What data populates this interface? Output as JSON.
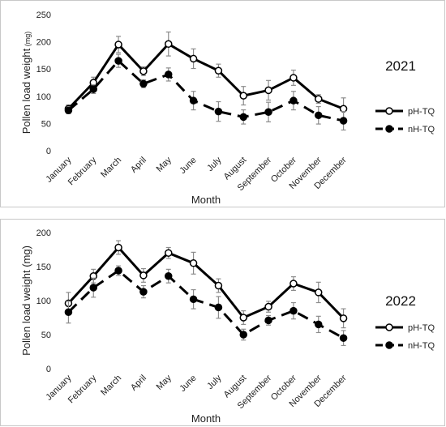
{
  "chart_data": [
    {
      "type": "line",
      "title": "2021",
      "xlabel": "Month",
      "ylabel": "Pollen load weight",
      "ylabel_unit": "(mg)",
      "ylim": [
        0,
        250
      ],
      "yticks": [
        0,
        50,
        100,
        150,
        200,
        250
      ],
      "categories": [
        "January",
        "February",
        "March",
        "April",
        "May",
        "June",
        "July",
        "August",
        "September",
        "October",
        "November",
        "December"
      ],
      "series": [
        {
          "name": "pH-TQ",
          "style": "solid",
          "marker": "open-circle",
          "values": [
            77,
            125,
            195,
            146,
            196,
            169,
            147,
            101,
            111,
            134,
            95,
            77
          ],
          "errors": [
            7,
            10,
            15,
            8,
            22,
            18,
            12,
            17,
            18,
            14,
            8,
            20
          ]
        },
        {
          "name": "nH-TQ",
          "style": "dashed",
          "marker": "filled-circle",
          "values": [
            74,
            113,
            165,
            123,
            140,
            92,
            72,
            62,
            71,
            92,
            65,
            55
          ],
          "errors": [
            6,
            8,
            12,
            7,
            12,
            17,
            18,
            13,
            18,
            17,
            16,
            17
          ]
        }
      ],
      "legend_position": "right",
      "grid": false
    },
    {
      "type": "line",
      "title": "2022",
      "xlabel": "Month",
      "ylabel": "Pollen load weight (mg)",
      "ylim": [
        0,
        200
      ],
      "yticks": [
        0,
        50,
        100,
        150,
        200
      ],
      "categories": [
        "January",
        "February",
        "March",
        "April",
        "May",
        "June",
        "July",
        "August",
        "September",
        "October",
        "November",
        "December"
      ],
      "series": [
        {
          "name": "pH-TQ",
          "style": "solid",
          "marker": "open-circle",
          "values": [
            96,
            136,
            178,
            137,
            170,
            155,
            122,
            75,
            91,
            125,
            112,
            74
          ],
          "errors": [
            16,
            10,
            10,
            10,
            8,
            16,
            10,
            10,
            8,
            10,
            15,
            14
          ]
        },
        {
          "name": "nH-TQ",
          "style": "dashed",
          "marker": "filled-circle",
          "values": [
            83,
            119,
            144,
            113,
            136,
            102,
            90,
            50,
            71,
            85,
            65,
            45
          ],
          "errors": [
            16,
            14,
            7,
            9,
            10,
            14,
            16,
            8,
            7,
            12,
            12,
            11
          ]
        }
      ],
      "legend_position": "right",
      "grid": false
    }
  ]
}
